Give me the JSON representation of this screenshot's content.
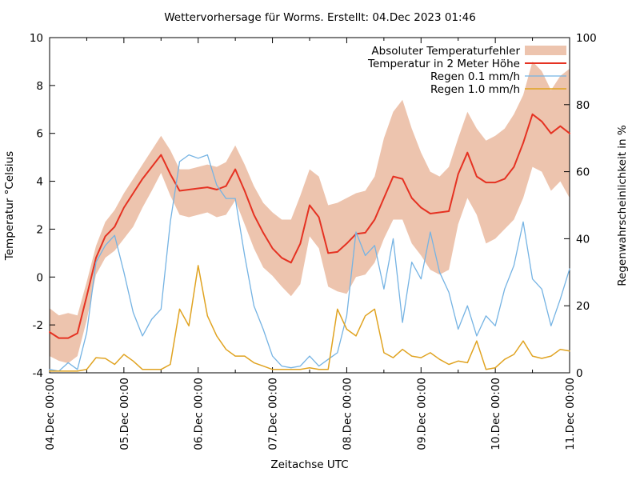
{
  "title": "Wettervorhersage für Worms. Erstellt: 04.Dec 2023 01:46",
  "colors": {
    "background": "#ffffff",
    "axis": "#000000",
    "text": "#000000",
    "error_band": "#edc4ae",
    "temperature": "#e53222",
    "rain01": "#75b3e3",
    "rain10": "#e0a321"
  },
  "chart_data": {
    "type": "line",
    "title": "Wettervorhersage für Worms. Erstellt: 04.Dec 2023 01:46",
    "x_axis": {
      "label": "Zeitachse UTC",
      "tick_labels": [
        "04.Dec 00:00",
        "05.Dec 00:00",
        "06.Dec 00:00",
        "07.Dec 00:00",
        "08.Dec 00:00",
        "09.Dec 00:00",
        "10.Dec 00:00",
        "11.Dec 00:00"
      ],
      "major_tick_hours": 24,
      "minor_tick_hours": 12,
      "range_hours": [
        0,
        168
      ]
    },
    "y_left": {
      "label": "Temperatur °Celsius",
      "min": -4,
      "max": 10,
      "tick_step": 2
    },
    "y_right": {
      "label": "Regenwahrscheinlichkeit in %",
      "min": 0,
      "max": 100,
      "tick_step": 20
    },
    "legend_position": "top-right",
    "grid": false,
    "sample_step_hours": 3,
    "series": [
      {
        "name": "Absoluter Temperaturfehler",
        "type": "band",
        "axis": "left",
        "color": "#edc4ae",
        "upper": [
          -1.3,
          -1.6,
          -1.5,
          -1.6,
          -0.2,
          1.3,
          2.3,
          2.8,
          3.5,
          4.1,
          4.7,
          5.3,
          5.9,
          5.3,
          4.5,
          4.5,
          4.6,
          4.7,
          4.6,
          4.8,
          5.5,
          4.7,
          3.8,
          3.1,
          2.7,
          2.4,
          2.4,
          3.4,
          4.5,
          4.2,
          3.0,
          3.1,
          3.3,
          3.5,
          3.6,
          4.2,
          5.8,
          6.9,
          7.4,
          6.2,
          5.2,
          4.4,
          4.2,
          4.6,
          5.8,
          6.9,
          6.2,
          5.7,
          5.9,
          6.2,
          6.8,
          7.6,
          9.0,
          8.6,
          7.8,
          8.4,
          8.7
        ],
        "lower": [
          -3.3,
          -3.5,
          -3.6,
          -3.3,
          -1.8,
          0.1,
          0.8,
          1.1,
          1.6,
          2.1,
          2.9,
          3.6,
          4.35,
          3.4,
          2.6,
          2.5,
          2.6,
          2.7,
          2.5,
          2.6,
          3.2,
          2.2,
          1.2,
          0.4,
          0.05,
          -0.4,
          -0.8,
          -0.3,
          1.7,
          1.2,
          -0.4,
          -0.6,
          -0.7,
          0.0,
          0.1,
          0.6,
          1.6,
          2.4,
          2.4,
          1.4,
          0.9,
          0.3,
          0.1,
          0.3,
          2.2,
          3.3,
          2.6,
          1.4,
          1.6,
          2.0,
          2.4,
          3.3,
          4.6,
          4.4,
          3.6,
          4.0,
          3.3
        ]
      },
      {
        "name": "Temperatur in 2 Meter Höhe",
        "type": "line",
        "axis": "left",
        "color": "#e53222",
        "width": 2,
        "values": [
          -2.3,
          -2.55,
          -2.55,
          -2.35,
          -0.8,
          0.8,
          1.7,
          2.1,
          2.9,
          3.5,
          4.1,
          4.6,
          5.1,
          4.3,
          3.6,
          3.65,
          3.7,
          3.75,
          3.65,
          3.8,
          4.5,
          3.6,
          2.6,
          1.85,
          1.2,
          0.8,
          0.6,
          1.4,
          3.0,
          2.5,
          1.0,
          1.05,
          1.4,
          1.8,
          1.85,
          2.4,
          3.3,
          4.2,
          4.1,
          3.3,
          2.9,
          2.65,
          2.7,
          2.75,
          4.3,
          5.2,
          4.2,
          3.95,
          3.95,
          4.1,
          4.6,
          5.6,
          6.8,
          6.5,
          6.0,
          6.3,
          6.0
        ]
      },
      {
        "name": "Regen 0.1 mm/h",
        "type": "line",
        "axis": "right",
        "color": "#75b3e3",
        "width": 1.3,
        "values": [
          1,
          0.5,
          3,
          1,
          12,
          33,
          38,
          41,
          30,
          18,
          11,
          16,
          19,
          45,
          63,
          65,
          64,
          65,
          56,
          52,
          52,
          35,
          20,
          13,
          5,
          2,
          1.5,
          2,
          5,
          2,
          4,
          6,
          17,
          42,
          35,
          38,
          25,
          40,
          15,
          33,
          28,
          42,
          30,
          24,
          13,
          20,
          11,
          17,
          14,
          25,
          32,
          45,
          28,
          25,
          14,
          22,
          31
        ]
      },
      {
        "name": "Regen 1.0 mm/h",
        "type": "line",
        "axis": "right",
        "color": "#e0a321",
        "width": 1.5,
        "values": [
          0.5,
          0.5,
          0.5,
          0.5,
          1,
          4.5,
          4.3,
          2.5,
          5.5,
          3.5,
          1,
          1,
          1,
          2.5,
          19,
          14,
          32,
          17,
          11,
          7,
          5,
          5,
          3,
          2,
          1,
          1,
          1,
          1,
          1.5,
          1,
          1,
          19,
          13,
          11,
          17,
          19,
          6,
          4.5,
          7,
          5,
          4.5,
          6,
          4,
          2.5,
          3.5,
          3,
          9.5,
          1,
          1.5,
          4,
          5.5,
          9.5,
          5,
          4.3,
          5,
          7,
          6.5
        ]
      }
    ]
  }
}
